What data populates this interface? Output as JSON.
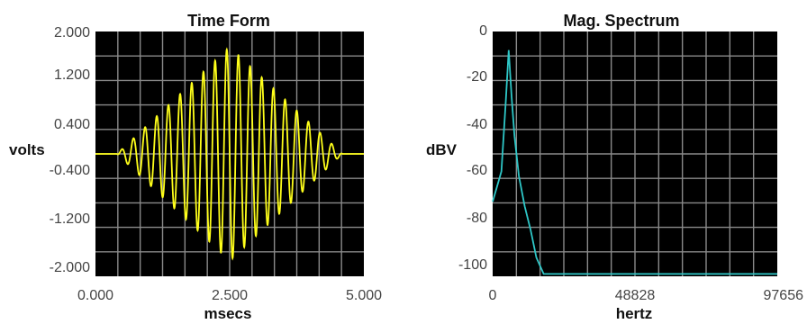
{
  "chart_data": [
    {
      "type": "line",
      "title": "Time Form",
      "xlabel": "msecs",
      "ylabel": "volts",
      "xlim": [
        0,
        5
      ],
      "ylim": [
        -2,
        2
      ],
      "x_tick_labels": [
        "0.000",
        "2.500",
        "5.000"
      ],
      "y_tick_labels": [
        "2.000",
        "1.200",
        "0.400",
        "-0.400",
        "-1.200",
        "-2.000"
      ],
      "grid": true,
      "background": "#000000",
      "grid_color": "#8a8a8a",
      "line_color": "#ffff1a",
      "series": [
        {
          "description": "Tone burst: sinusoid with diamond-shaped envelope",
          "carrier_cycles": 23,
          "envelope_start_ms": 0.4,
          "envelope_peak_ms": 2.5,
          "envelope_end_ms": 4.6,
          "peak_amplitude_volts": 1.75
        }
      ]
    },
    {
      "type": "line",
      "title": "Mag. Spectrum",
      "xlabel": "hertz",
      "ylabel": "dBV",
      "xlim": [
        0,
        97656
      ],
      "ylim": [
        -105,
        0
      ],
      "x_tick_labels": [
        "0",
        "48828",
        "97656"
      ],
      "y_tick_labels": [
        "0",
        "-20",
        "-40",
        "-60",
        "-80",
        "-100"
      ],
      "grid": true,
      "background": "#000000",
      "grid_color": "#8a8a8a",
      "line_color": "#2ec7c7",
      "series": [
        {
          "x": [
            0,
            3000,
            4500,
            5500,
            6500,
            7500,
            9000,
            11000,
            13000,
            15000,
            17500,
            25000,
            50000,
            75000,
            97656
          ],
          "y": [
            -73,
            -60,
            -30,
            -8,
            -28,
            -45,
            -62,
            -75,
            -85,
            -97,
            -104,
            -104,
            -104,
            -104,
            -104
          ]
        }
      ]
    }
  ]
}
